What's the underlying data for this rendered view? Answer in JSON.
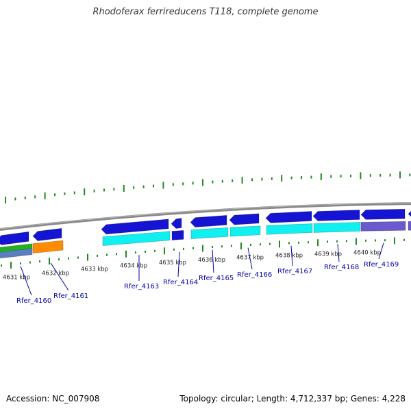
{
  "header": {
    "title": "Rhodoferax ferrireducens T118, complete genome"
  },
  "footer": {
    "accession": "Accession: NC_007908",
    "summary": "Topology: circular; Length: 4,712,337 bp; Genes: 4,228"
  },
  "colors": {
    "backbone": "#888888",
    "tick": "#1e8c1e",
    "gene_blue": "#1414d2",
    "gene_cyan": "#10f0f0",
    "gene_purple": "#6a5acd",
    "gene_orange": "#ff8c00",
    "gene_green": "#22b022",
    "label_blue": "#0000aa"
  },
  "scale": {
    "unit": "kbp",
    "ticks": [
      "4631 kbp",
      "4632 kbp",
      "4633 kbp",
      "4634 kbp",
      "4635 kbp",
      "4636 kbp",
      "4637 kbp",
      "4638 kbp",
      "4639 kbp",
      "4640 kbp"
    ]
  },
  "genes": [
    {
      "name": "Rfer_4160"
    },
    {
      "name": "Rfer_4161"
    },
    {
      "name": "Rfer_4163"
    },
    {
      "name": "Rfer_4164"
    },
    {
      "name": "Rfer_4165"
    },
    {
      "name": "Rfer_4166"
    },
    {
      "name": "Rfer_4167"
    },
    {
      "name": "Rfer_4168"
    },
    {
      "name": "Rfer_4169"
    }
  ]
}
